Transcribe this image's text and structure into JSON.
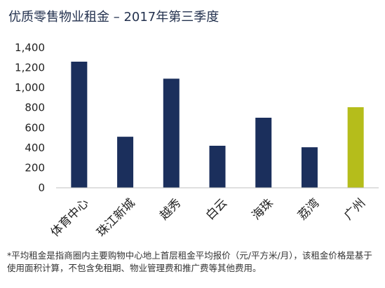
{
  "page": {
    "title": "优质零售物业租金 – 2017年第三季度",
    "footnote": "*平均租金是指商圈内主要购物中心地上首层租金平均报价（元/平方米/月），该租金价格是基于使用面积计算，不包含免租期、物业管理费和推广费等其他费用。"
  },
  "colors": {
    "bar": "#1b2f5c",
    "highlight": "#b5bd1b",
    "text": "#222222"
  },
  "chart_data": {
    "type": "bar",
    "title": "优质零售物业租金 – 2017年第三季度",
    "xlabel": "",
    "ylabel": "",
    "categories": [
      "体育中心",
      "珠江新城",
      "越秀",
      "白云",
      "海珠",
      "荔湾",
      "广州"
    ],
    "values": [
      1260,
      510,
      1090,
      420,
      700,
      405,
      805
    ],
    "highlight_category": "广州",
    "ylim": [
      0,
      1400
    ],
    "yticks": [
      0,
      200,
      400,
      600,
      800,
      1000,
      1200,
      1400
    ],
    "ytick_labels": [
      "0",
      "200",
      "400",
      "600",
      "800",
      "1,000",
      "1,200",
      "1,400"
    ],
    "grid": false,
    "legend": "none"
  }
}
